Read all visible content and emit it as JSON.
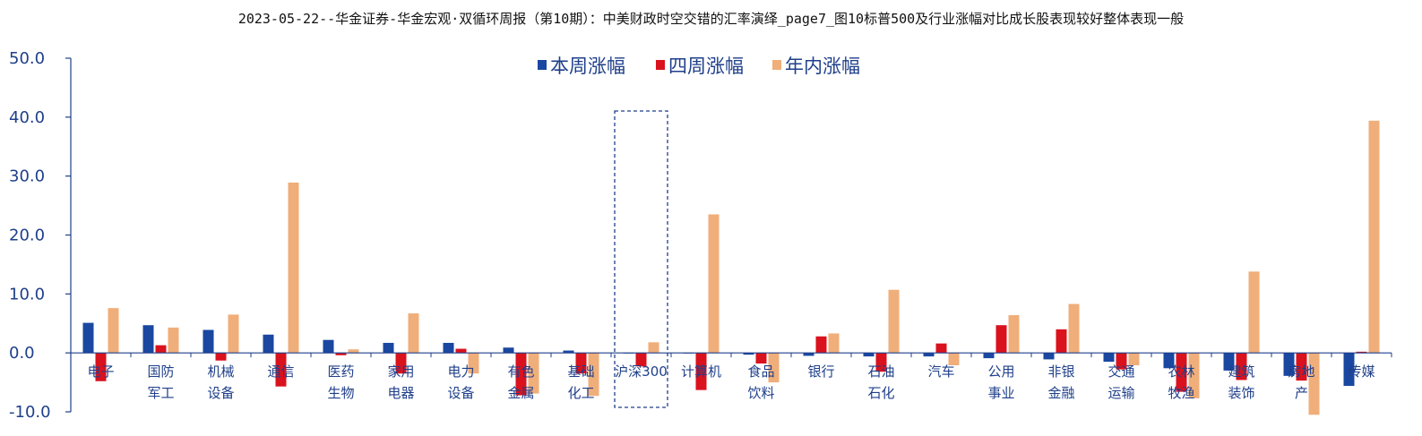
{
  "title": "2023-05-22--华金证券-华金宏观·双循环周报（第10期）：中美财政时空交错的汇率演绎_page7_图10标普500及行业涨幅对比成长股表现较好整体表现一般",
  "chart_data": {
    "type": "bar",
    "title": "",
    "xlabel": "",
    "ylabel": "",
    "ylim": [
      -10,
      50
    ],
    "yticks": [
      -10,
      0,
      10,
      20,
      30,
      40,
      50
    ],
    "ytick_labels": [
      "-10.0",
      "0.0",
      "10.0",
      "20.0",
      "30.0",
      "40.0",
      "50.0"
    ],
    "legend_position": "top-center",
    "grid": false,
    "highlighted_category": "沪深300",
    "categories": [
      [
        "电子"
      ],
      [
        "国防",
        "军工"
      ],
      [
        "机械",
        "设备"
      ],
      [
        "通信"
      ],
      [
        "医药",
        "生物"
      ],
      [
        "家用",
        "电器"
      ],
      [
        "电力",
        "设备"
      ],
      [
        "有色",
        "金属"
      ],
      [
        "基础",
        "化工"
      ],
      [
        "沪深300"
      ],
      [
        "计算机"
      ],
      [
        "食品",
        "饮料"
      ],
      [
        "银行"
      ],
      [
        "石油",
        "石化"
      ],
      [
        "汽车"
      ],
      [
        "公用",
        "事业"
      ],
      [
        "非银",
        "金融"
      ],
      [
        "交通",
        "运输"
      ],
      [
        "农林",
        "牧渔"
      ],
      [
        "建筑",
        "装饰"
      ],
      [
        "房地",
        "产"
      ],
      [
        "传媒"
      ]
    ],
    "series": [
      {
        "name": "本周涨幅",
        "color": "#1a47a0",
        "values": [
          5.1,
          4.7,
          3.9,
          3.1,
          2.2,
          1.7,
          1.7,
          0.9,
          0.4,
          -0.1,
          -0.1,
          -0.3,
          -0.5,
          -0.6,
          -0.6,
          -0.9,
          -1.1,
          -1.5,
          -2.6,
          -3.0,
          -3.9,
          -5.6
        ]
      },
      {
        "name": "四周涨幅",
        "color": "#d9121e",
        "values": [
          -4.8,
          1.3,
          -1.3,
          -5.7,
          -0.4,
          -3.5,
          0.7,
          -7.2,
          -3.5,
          -2.3,
          -6.3,
          -1.8,
          2.8,
          -3.2,
          1.6,
          4.7,
          4.0,
          -2.8,
          -6.6,
          -4.6,
          -4.7,
          0.2
        ]
      },
      {
        "name": "年内涨幅",
        "color": "#f0ae7a",
        "values": [
          7.6,
          4.3,
          6.5,
          28.9,
          0.6,
          6.7,
          -3.5,
          -6.9,
          -7.3,
          1.8,
          23.5,
          -5.0,
          3.3,
          10.7,
          -2.1,
          6.4,
          8.3,
          -2.1,
          -7.7,
          13.8,
          -10.5,
          39.4
        ]
      }
    ]
  }
}
